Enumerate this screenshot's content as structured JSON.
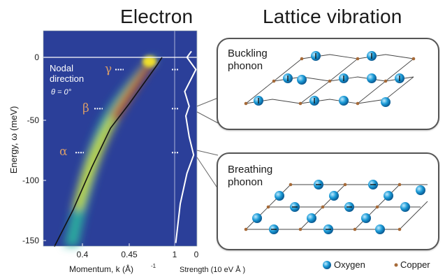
{
  "titles": {
    "electron": "Electron",
    "lattice": "Lattice vibration"
  },
  "axes": {
    "y_label": "Energy, ω  (meV)",
    "x_label": "Momentum, k  (Å)",
    "x_label_sup": "-1",
    "strength_label": "Strength (10  eV  Å )",
    "y_ticks": [
      "0",
      "-50",
      "-100",
      "-150"
    ],
    "x_ticks": [
      "0.4",
      "0.45"
    ],
    "strength_ticks": [
      "1",
      "0"
    ]
  },
  "annotations": {
    "nodal_line1": "Nodal",
    "nodal_line2": "direction",
    "theta": "θ = 0°",
    "gamma": "γ",
    "beta": "β",
    "alpha": "α"
  },
  "panels": {
    "buckling_line1": "Buckling",
    "buckling_line2": "phonon",
    "breathing_line1": "Breathing",
    "breathing_line2": "phonon"
  },
  "legend": {
    "oxygen": "Oxygen",
    "copper": "Copper"
  },
  "chart_data": {
    "type": "heatmap",
    "xlabel": "Momentum, k (Å⁻¹)",
    "ylabel": "Energy, ω (meV)",
    "ylim": [
      -155,
      10
    ],
    "y_ticks": [
      0,
      -50,
      -100,
      -150
    ],
    "x_ticks": [
      0.4,
      0.45
    ],
    "dispersion": [
      {
        "k": 0.37,
        "energy": -155
      },
      {
        "k": 0.39,
        "energy": -125
      },
      {
        "k": 0.41,
        "energy": -90
      },
      {
        "k": 0.43,
        "energy": -58
      },
      {
        "k": 0.45,
        "energy": -38
      },
      {
        "k": 0.465,
        "energy": -22
      },
      {
        "k": 0.48,
        "energy": -6
      },
      {
        "k": 0.485,
        "energy": 0
      }
    ],
    "kinks": [
      {
        "name": "γ",
        "energy": -10
      },
      {
        "name": "β",
        "energy": -42
      },
      {
        "name": "α",
        "energy": -78
      }
    ],
    "strength_profile": [
      {
        "energy": -152,
        "strength": 0.95
      },
      {
        "energy": -120,
        "strength": 0.75
      },
      {
        "energy": -95,
        "strength": 0.45
      },
      {
        "energy": -80,
        "strength": 0.15
      },
      {
        "energy": -65,
        "strength": 0.35
      },
      {
        "energy": -48,
        "strength": 0.5
      },
      {
        "energy": -40,
        "strength": 0.35
      },
      {
        "energy": -28,
        "strength": 0.55
      },
      {
        "energy": -10,
        "strength": 0.05
      },
      {
        "energy": 0,
        "strength": 0.45
      },
      {
        "energy": 5,
        "strength": 0.25
      }
    ]
  },
  "colors": {
    "plot_bg": "#2b3f99",
    "heat_core": "#c5401c",
    "heat_mid": "#f0df2a",
    "heat_outer": "#2fb5a0",
    "oxygen": "#1a9ad6",
    "copper": "#a66a38"
  }
}
